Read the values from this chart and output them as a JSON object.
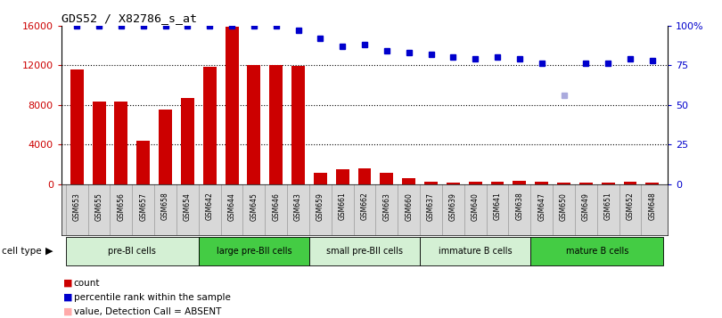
{
  "title": "GDS52 / X82786_s_at",
  "samples": [
    "GSM653",
    "GSM655",
    "GSM656",
    "GSM657",
    "GSM658",
    "GSM654",
    "GSM642",
    "GSM644",
    "GSM645",
    "GSM646",
    "GSM643",
    "GSM659",
    "GSM661",
    "GSM662",
    "GSM663",
    "GSM660",
    "GSM637",
    "GSM639",
    "GSM640",
    "GSM641",
    "GSM638",
    "GSM647",
    "GSM650",
    "GSM649",
    "GSM651",
    "GSM652",
    "GSM648"
  ],
  "bar_values": [
    11600,
    8300,
    8300,
    4400,
    7500,
    8700,
    11800,
    15900,
    12000,
    12000,
    11900,
    1200,
    1500,
    1600,
    1200,
    600,
    250,
    200,
    270,
    250,
    400,
    280,
    200,
    200,
    200,
    280,
    200
  ],
  "bar_absent": [
    false,
    false,
    false,
    false,
    false,
    false,
    false,
    false,
    false,
    false,
    false,
    false,
    false,
    false,
    false,
    false,
    false,
    false,
    false,
    false,
    false,
    false,
    false,
    false,
    false,
    false,
    false
  ],
  "percentile_values": [
    100,
    100,
    100,
    100,
    100,
    100,
    100,
    100,
    100,
    100,
    97,
    92,
    87,
    88,
    84,
    83,
    82,
    80,
    79,
    80,
    79,
    76,
    56,
    76,
    76,
    79,
    78
  ],
  "percentile_absent": [
    false,
    false,
    false,
    false,
    false,
    false,
    false,
    false,
    false,
    false,
    false,
    false,
    false,
    false,
    false,
    false,
    false,
    false,
    false,
    false,
    false,
    false,
    true,
    false,
    false,
    false,
    false
  ],
  "cell_groups": [
    {
      "label": "pre-BI cells",
      "start": 0,
      "end": 6,
      "color": "#d4f0d4"
    },
    {
      "label": "large pre-BII cells",
      "start": 6,
      "end": 11,
      "color": "#44cc44"
    },
    {
      "label": "small pre-BII cells",
      "start": 11,
      "end": 16,
      "color": "#d4f0d4"
    },
    {
      "label": "immature B cells",
      "start": 16,
      "end": 21,
      "color": "#d4f0d4"
    },
    {
      "label": "mature B cells",
      "start": 21,
      "end": 27,
      "color": "#44cc44"
    }
  ],
  "bar_color": "#cc0000",
  "bar_absent_color": "#ffaaaa",
  "dot_color": "#0000cc",
  "dot_absent_color": "#aaaadd",
  "ylim_left": [
    0,
    16000
  ],
  "ylim_right": [
    0,
    100
  ],
  "yticks_left": [
    0,
    4000,
    8000,
    12000,
    16000
  ],
  "yticks_right": [
    0,
    25,
    50,
    75,
    100
  ],
  "yticklabels_left": [
    "0",
    "4000",
    "8000",
    "12000",
    "16000"
  ],
  "yticklabels_right": [
    "0",
    "25",
    "50",
    "75",
    "100%"
  ]
}
